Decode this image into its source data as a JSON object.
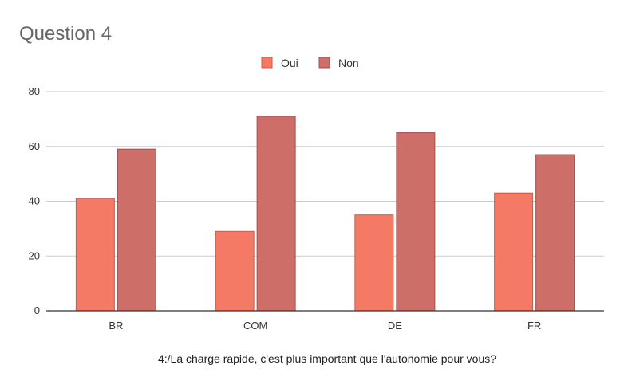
{
  "chart_data": {
    "type": "bar",
    "title": "Question 4",
    "xlabel": "4:/La charge rapide, c'est plus important que l'autonomie pour vous?",
    "ylabel": "",
    "categories": [
      "BR",
      "COM",
      "DE",
      "FR"
    ],
    "series": [
      {
        "name": "Oui",
        "color": "#F47A66",
        "values": [
          41,
          29,
          35,
          43
        ]
      },
      {
        "name": "Non",
        "color": "#CD6E68",
        "values": [
          59,
          71,
          65,
          57
        ]
      }
    ],
    "ylim": [
      0,
      80
    ],
    "yticks": [
      "0",
      "20",
      "40",
      "60",
      "80"
    ],
    "grid": true,
    "legend": "top-center"
  }
}
